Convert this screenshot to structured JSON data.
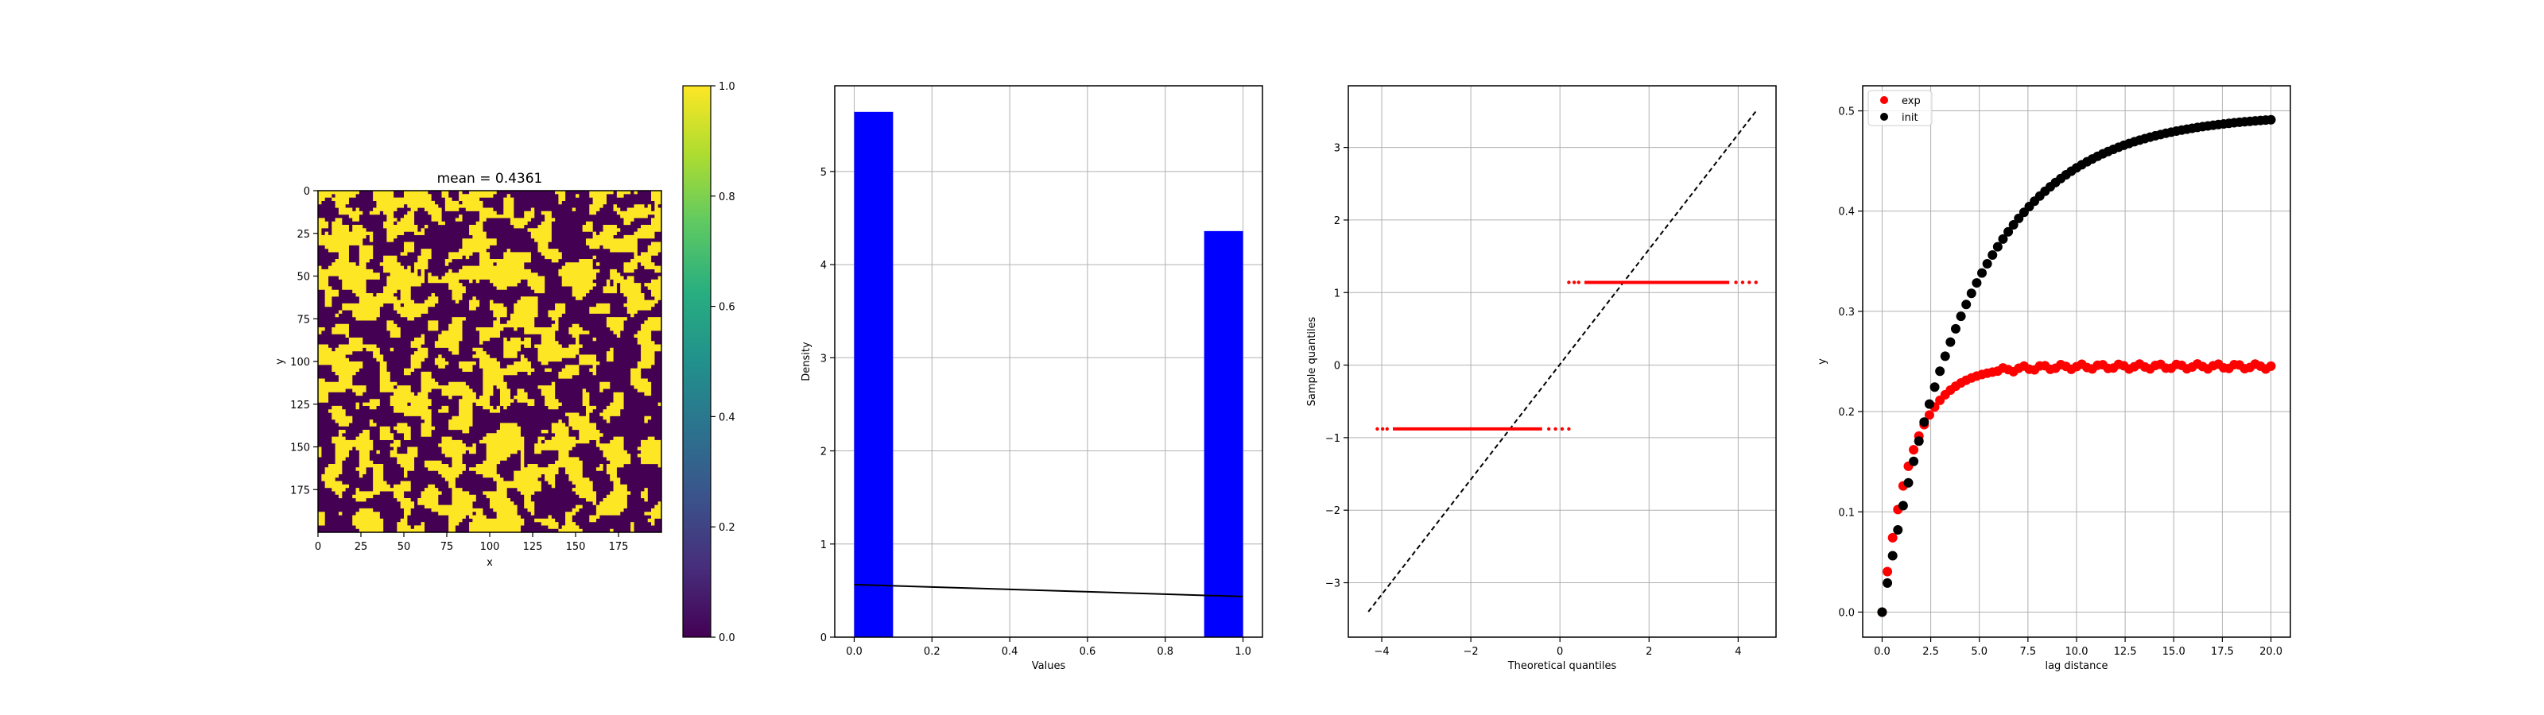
{
  "chart_data": [
    {
      "type": "heatmap",
      "title": "mean = 0.4361",
      "xlabel": "x",
      "ylabel": "y",
      "xticks": [
        "0",
        "25",
        "50",
        "75",
        "100",
        "125",
        "150",
        "175"
      ],
      "yticks": [
        "0",
        "25",
        "50",
        "75",
        "100",
        "125",
        "150",
        "175"
      ],
      "xlim": [
        0,
        200
      ],
      "ylim": [
        0,
        200
      ],
      "mean": 0.4361,
      "colormap": "viridis",
      "colorbar": {
        "ticks": [
          "0.0",
          "0.2",
          "0.4",
          "0.6",
          "0.8",
          "1.0"
        ],
        "range": [
          0,
          1
        ]
      }
    },
    {
      "type": "bar",
      "xlabel": "Values",
      "ylabel": "Density",
      "bars": [
        {
          "x0": 0.0,
          "x1": 0.1,
          "value": 5.64
        },
        {
          "x0": 0.9,
          "x1": 1.0,
          "value": 4.36
        }
      ],
      "line": {
        "x": [
          0.0,
          1.0
        ],
        "y": [
          0.564,
          0.436
        ]
      },
      "xlim": [
        -0.05,
        1.05
      ],
      "ylim": [
        0,
        5.92
      ],
      "xticks": [
        "0.0",
        "0.2",
        "0.4",
        "0.6",
        "0.8",
        "1.0"
      ],
      "yticks": [
        "0",
        "1",
        "2",
        "3",
        "4",
        "5"
      ],
      "bar_color": "#0000ff",
      "grid": true
    },
    {
      "type": "scatter",
      "xlabel": "Theoretical quantiles",
      "ylabel": "Sample quantiles",
      "segments": [
        {
          "x0": -4.1,
          "x1": 0.2,
          "y": -0.88
        },
        {
          "x0": 0.2,
          "x1": 4.4,
          "y": 1.14
        }
      ],
      "reference_line": {
        "x": [
          -4.3,
          4.4
        ],
        "y": [
          -3.4,
          3.5
        ]
      },
      "xlim": [
        -4.75,
        4.85
      ],
      "ylim": [
        -3.75,
        3.85
      ],
      "xticks": [
        "−4",
        "−2",
        "0",
        "2",
        "4"
      ],
      "yticks": [
        "−3",
        "−2",
        "−1",
        "0",
        "1",
        "2",
        "3"
      ],
      "point_color": "#ff0000",
      "grid": true
    },
    {
      "type": "scatter",
      "xlabel": "lag distance",
      "ylabel": "y",
      "series": [
        {
          "name": "exp",
          "color": "#ff0000",
          "sill": 0.245,
          "range": 1.5
        },
        {
          "name": "init",
          "color": "#000000",
          "sill": 0.497,
          "range": 4.5
        }
      ],
      "lags": {
        "start": 0.0,
        "end": 20.0,
        "count": 75
      },
      "xlim": [
        -1.0,
        21.0
      ],
      "ylim": [
        -0.025,
        0.525
      ],
      "xticks": [
        "0.0",
        "2.5",
        "5.0",
        "7.5",
        "10.0",
        "12.5",
        "15.0",
        "17.5",
        "20.0"
      ],
      "yticks": [
        "0.0",
        "0.1",
        "0.2",
        "0.3",
        "0.4",
        "0.5"
      ],
      "legend": "top-left",
      "grid": true
    }
  ]
}
